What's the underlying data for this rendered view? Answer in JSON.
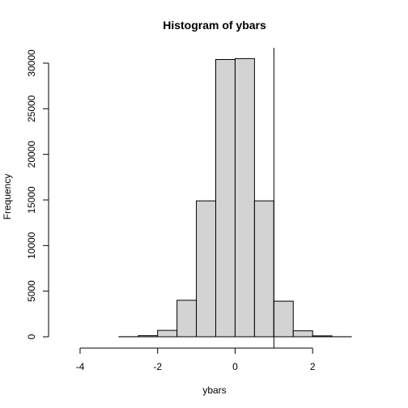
{
  "chart_data": {
    "type": "bar",
    "title": "Histogram of ybars",
    "xlabel": "ybars",
    "ylabel": "Frequency",
    "xlim": [
      -4.5,
      3.5
    ],
    "ylim": [
      0,
      31000
    ],
    "x_ticks": [
      "-4",
      "-2",
      "0",
      "2"
    ],
    "y_ticks": [
      "0",
      "5000",
      "10000",
      "15000",
      "20000",
      "25000",
      "30000"
    ],
    "bins": [
      {
        "start": -4.5,
        "end": -4.0,
        "value": 0
      },
      {
        "start": -4.0,
        "end": -3.5,
        "value": 0
      },
      {
        "start": -3.5,
        "end": -3.0,
        "value": 0
      },
      {
        "start": -3.0,
        "end": -2.5,
        "value": 10
      },
      {
        "start": -2.5,
        "end": -2.0,
        "value": 120
      },
      {
        "start": -2.0,
        "end": -1.5,
        "value": 700
      },
      {
        "start": -1.5,
        "end": -1.0,
        "value": 4000
      },
      {
        "start": -1.0,
        "end": -0.5,
        "value": 14900
      },
      {
        "start": -0.5,
        "end": 0.0,
        "value": 30400
      },
      {
        "start": 0.0,
        "end": 0.5,
        "value": 30500
      },
      {
        "start": 0.5,
        "end": 1.0,
        "value": 14900
      },
      {
        "start": 1.0,
        "end": 1.5,
        "value": 3900
      },
      {
        "start": 1.5,
        "end": 2.0,
        "value": 650
      },
      {
        "start": 2.0,
        "end": 2.5,
        "value": 100
      },
      {
        "start": 2.5,
        "end": 3.0,
        "value": 5
      },
      {
        "start": 3.0,
        "end": 3.5,
        "value": 0
      }
    ],
    "vline_x": 1.0,
    "bar_fill": "#d3d3d3",
    "bar_stroke": "#000000",
    "grid": false,
    "legend": "none"
  }
}
